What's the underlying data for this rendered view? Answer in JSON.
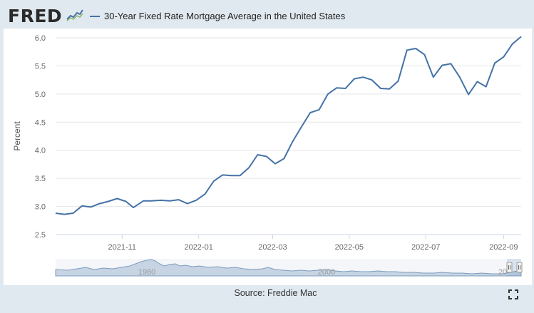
{
  "header": {
    "logo": "FRED",
    "logo_mark": "®",
    "series_name": "30-Year Fixed Rate Mortgage Average in the United States"
  },
  "source": "Source: Freddie Mac",
  "navigator": {
    "years": [
      "1980",
      "2000",
      "20"
    ]
  },
  "colors": {
    "line": "#4572a7",
    "background": "#e1e9f0",
    "plot": "#ffffff",
    "grid": "#e6e6e6"
  },
  "chart_data": {
    "type": "line",
    "ylabel": "Percent",
    "ylim": [
      2.5,
      6.0
    ],
    "yticks": [
      "6.0",
      "5.5",
      "5.0",
      "4.5",
      "4.0",
      "3.5",
      "3.0",
      "2.5"
    ],
    "xlim": [
      "2021-09-09",
      "2022-09-15"
    ],
    "xticks": [
      {
        "date": "2021-11-01",
        "label": "2021-11"
      },
      {
        "date": "2022-01-01",
        "label": "2022-01"
      },
      {
        "date": "2022-03-01",
        "label": "2022-03"
      },
      {
        "date": "2022-05-01",
        "label": "2022-05"
      },
      {
        "date": "2022-07-01",
        "label": "2022-07"
      },
      {
        "date": "2022-09-01",
        "label": "2022-09"
      }
    ],
    "grid": true,
    "series": [
      {
        "name": "30-Year Fixed Rate Mortgage Average in the United States",
        "x": [
          "2021-09-09",
          "2021-09-16",
          "2021-09-23",
          "2021-09-30",
          "2021-10-07",
          "2021-10-14",
          "2021-10-21",
          "2021-10-28",
          "2021-11-04",
          "2021-11-10",
          "2021-11-18",
          "2021-11-24",
          "2021-12-02",
          "2021-12-09",
          "2021-12-16",
          "2021-12-23",
          "2021-12-30",
          "2022-01-06",
          "2022-01-13",
          "2022-01-20",
          "2022-01-27",
          "2022-02-03",
          "2022-02-10",
          "2022-02-17",
          "2022-02-24",
          "2022-03-03",
          "2022-03-10",
          "2022-03-17",
          "2022-03-24",
          "2022-03-31",
          "2022-04-07",
          "2022-04-14",
          "2022-04-21",
          "2022-04-28",
          "2022-05-05",
          "2022-05-12",
          "2022-05-19",
          "2022-05-26",
          "2022-06-02",
          "2022-06-09",
          "2022-06-16",
          "2022-06-23",
          "2022-06-30",
          "2022-07-07",
          "2022-07-14",
          "2022-07-21",
          "2022-07-28",
          "2022-08-04",
          "2022-08-11",
          "2022-08-18",
          "2022-08-25",
          "2022-09-01",
          "2022-09-08",
          "2022-09-15"
        ],
        "values": [
          2.88,
          2.86,
          2.88,
          3.01,
          2.99,
          3.05,
          3.09,
          3.14,
          3.09,
          2.98,
          3.1,
          3.1,
          3.11,
          3.1,
          3.12,
          3.05,
          3.11,
          3.22,
          3.45,
          3.56,
          3.55,
          3.55,
          3.69,
          3.92,
          3.89,
          3.76,
          3.85,
          4.16,
          4.42,
          4.67,
          4.72,
          5.0,
          5.11,
          5.1,
          5.27,
          5.3,
          5.25,
          5.1,
          5.09,
          5.23,
          5.78,
          5.81,
          5.7,
          5.3,
          5.51,
          5.54,
          5.3,
          4.99,
          5.22,
          5.13,
          5.55,
          5.66,
          5.89,
          6.02
        ]
      }
    ]
  }
}
